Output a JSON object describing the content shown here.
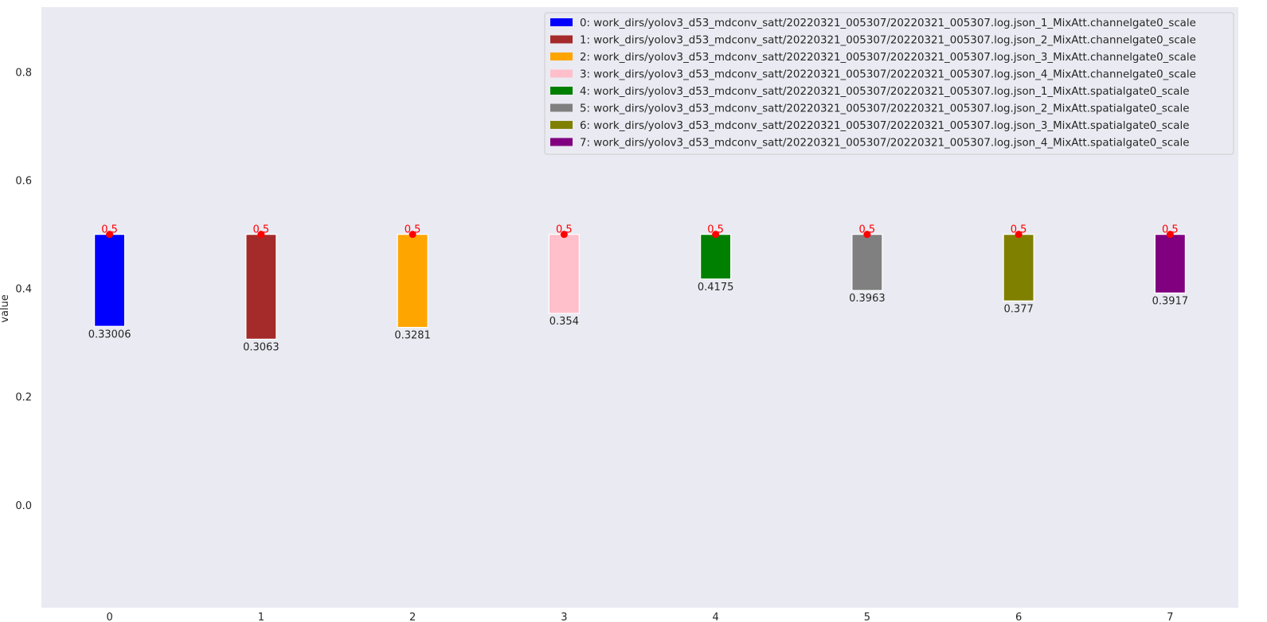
{
  "chart_data": {
    "type": "bar",
    "categories": [
      "0",
      "1",
      "2",
      "3",
      "4",
      "5",
      "6",
      "7"
    ],
    "values": [
      0.33006,
      0.3063,
      0.3281,
      0.354,
      0.4175,
      0.3963,
      0.377,
      0.3917
    ],
    "top_values": [
      0.5,
      0.5,
      0.5,
      0.5,
      0.5,
      0.5,
      0.5,
      0.5
    ],
    "value_labels": [
      "0.33006",
      "0.3063",
      "0.3281",
      "0.354",
      "0.4175",
      "0.3963",
      "0.377",
      "0.3917"
    ],
    "top_labels": [
      "0.5",
      "0.5",
      "0.5",
      "0.5",
      "0.5",
      "0.5",
      "0.5",
      "0.5"
    ],
    "colors": [
      "#0000ff",
      "#a52a2a",
      "#ffa500",
      "#ffc0cb",
      "#008000",
      "#808080",
      "#808000",
      "#800080"
    ],
    "marker_color": "#ff0000",
    "background": "#eaeaf2",
    "title": "",
    "xlabel": "",
    "ylabel": "value",
    "ylim": [
      -0.19,
      0.92
    ],
    "yticks": [
      0.0,
      0.2,
      0.4,
      0.6,
      0.8
    ],
    "ytick_labels": [
      "0.0",
      "0.2",
      "0.4",
      "0.6",
      "0.8"
    ],
    "grid": false,
    "legend_position": "top-right",
    "legend": [
      "0: work_dirs/yolov3_d53_mdconv_satt/20220321_005307/20220321_005307.log.json_1_MixAtt.channelgate0_scale",
      "1: work_dirs/yolov3_d53_mdconv_satt/20220321_005307/20220321_005307.log.json_2_MixAtt.channelgate0_scale",
      "2: work_dirs/yolov3_d53_mdconv_satt/20220321_005307/20220321_005307.log.json_3_MixAtt.channelgate0_scale",
      "3: work_dirs/yolov3_d53_mdconv_satt/20220321_005307/20220321_005307.log.json_4_MixAtt.channelgate0_scale",
      "4: work_dirs/yolov3_d53_mdconv_satt/20220321_005307/20220321_005307.log.json_1_MixAtt.spatialgate0_scale",
      "5: work_dirs/yolov3_d53_mdconv_satt/20220321_005307/20220321_005307.log.json_2_MixAtt.spatialgate0_scale",
      "6: work_dirs/yolov3_d53_mdconv_satt/20220321_005307/20220321_005307.log.json_3_MixAtt.spatialgate0_scale",
      "7: work_dirs/yolov3_d53_mdconv_satt/20220321_005307/20220321_005307.log.json_4_MixAtt.spatialgate0_scale"
    ]
  }
}
